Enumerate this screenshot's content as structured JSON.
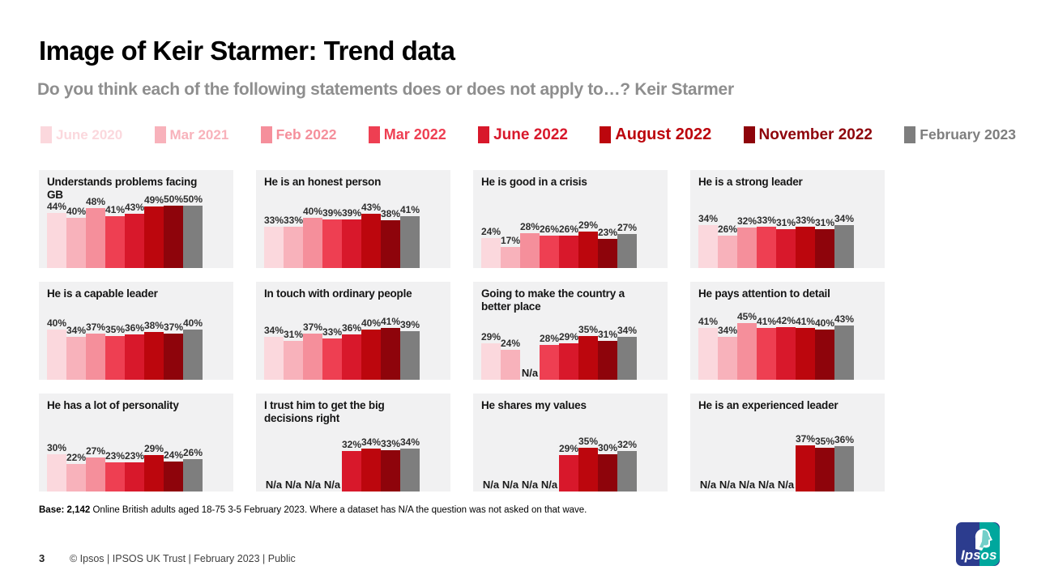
{
  "slide": {
    "title": "Image of Keir Starmer: Trend data",
    "subtitle": "Do you think each of the following statements does or does not apply to…? Keir Starmer",
    "page_number": "3",
    "copyright": "© Ipsos |  IPSOS UK Trust | February 2023 | Public",
    "base_bold": "Base: 2,142",
    "base_rest": " Online British adults aged 18-75 3-5 February 2023. Where a dataset has N/A the question was not asked on that wave.",
    "logo_text": "Ipsos"
  },
  "legend": {
    "items": [
      {
        "label": "June 2020",
        "color": "#fbd8dd"
      },
      {
        "label": "Mar 2021",
        "color": "#f8b2bb"
      },
      {
        "label": "Feb 2022",
        "color": "#f58f9b"
      },
      {
        "label": "Mar 2022",
        "color": "#ee3f52"
      },
      {
        "label": "June 2022",
        "color": "#d8182b"
      },
      {
        "label": "August 2022",
        "color": "#bc060d"
      },
      {
        "label": "November 2022",
        "color": "#8e040b"
      },
      {
        "label": "February 2023",
        "color": "#7e7e7e"
      }
    ]
  },
  "chart_data": {
    "type": "bar",
    "unit": "%",
    "na_label": "N/a",
    "grid": false,
    "legend_position": "top",
    "ylim": [
      0,
      60
    ],
    "categories": [
      "June 2020",
      "Mar 2021",
      "Feb 2022",
      "Mar 2022",
      "June 2022",
      "August 2022",
      "November 2022",
      "February 2023"
    ],
    "series_colors": [
      "#fbd8dd",
      "#f8b2bb",
      "#f58f9b",
      "#ee3f52",
      "#d8182b",
      "#bc060d",
      "#8e040b",
      "#7e7e7e"
    ],
    "charts": [
      {
        "title": "Understands problems facing GB",
        "values": [
          44,
          40,
          48,
          41,
          43,
          49,
          50,
          50
        ]
      },
      {
        "title": "He is an honest person",
        "values": [
          33,
          33,
          40,
          39,
          39,
          43,
          38,
          41
        ]
      },
      {
        "title": "He is good in a crisis",
        "values": [
          24,
          17,
          28,
          26,
          26,
          29,
          23,
          27
        ]
      },
      {
        "title": "He is a strong leader",
        "values": [
          34,
          26,
          32,
          33,
          31,
          33,
          31,
          34
        ]
      },
      {
        "title": "He is a capable leader",
        "values": [
          40,
          34,
          37,
          35,
          36,
          38,
          37,
          40
        ]
      },
      {
        "title": "In touch with ordinary people",
        "values": [
          34,
          31,
          37,
          33,
          36,
          40,
          41,
          39
        ]
      },
      {
        "title": "Going to make the country a better place",
        "values": [
          29,
          24,
          null,
          28,
          29,
          35,
          31,
          34
        ]
      },
      {
        "title": "He pays attention to detail",
        "values": [
          41,
          34,
          45,
          41,
          42,
          41,
          40,
          43
        ]
      },
      {
        "title": "He has a lot of personality",
        "values": [
          30,
          22,
          27,
          23,
          23,
          29,
          24,
          26
        ]
      },
      {
        "title": "I trust him to get the big decisions right",
        "values": [
          null,
          null,
          null,
          null,
          32,
          34,
          33,
          34
        ]
      },
      {
        "title": "He shares my values",
        "values": [
          null,
          null,
          null,
          null,
          29,
          35,
          30,
          32
        ]
      },
      {
        "title": "He is an experienced leader",
        "values": [
          null,
          null,
          null,
          null,
          null,
          37,
          35,
          36
        ]
      }
    ]
  }
}
